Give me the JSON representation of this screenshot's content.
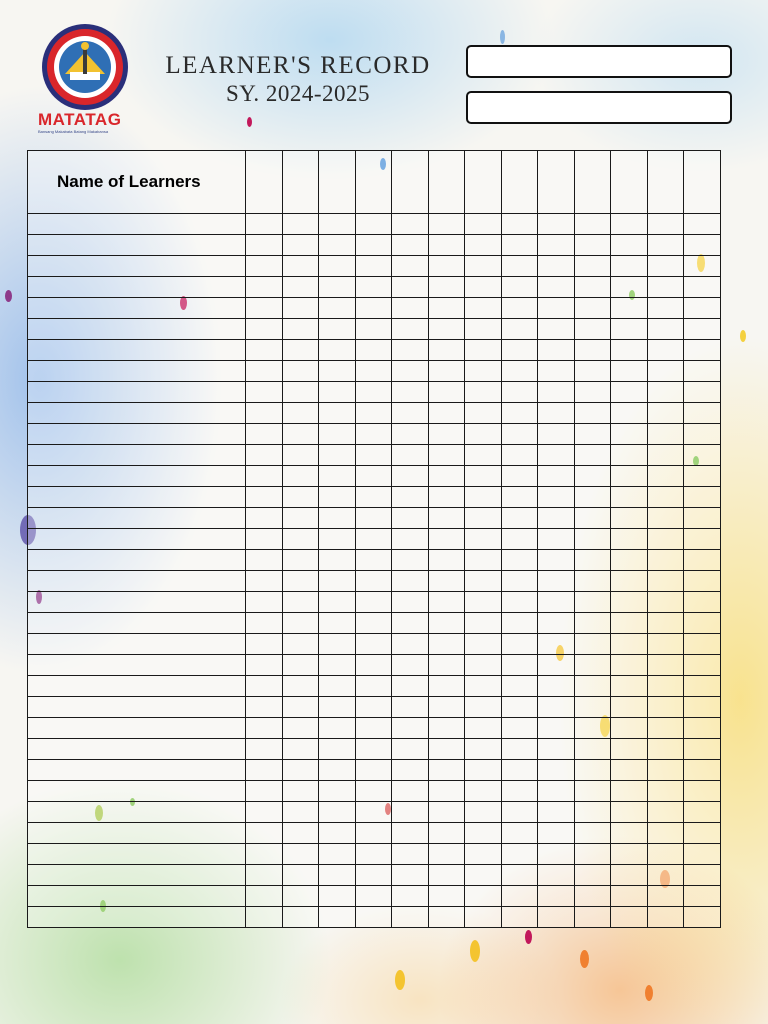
{
  "header": {
    "title": "LEARNER'S RECORD",
    "school_year": "SY. 2024-2025",
    "logo_text": "MATATAG",
    "logo_tagline": "Bansang Makabata Batang Makabansa"
  },
  "table": {
    "name_column_header": "Name of Learners",
    "score_columns": 13,
    "rows": 34
  },
  "colors": {
    "matatag_red": "#d9262b",
    "border": "#1a1a1a"
  }
}
